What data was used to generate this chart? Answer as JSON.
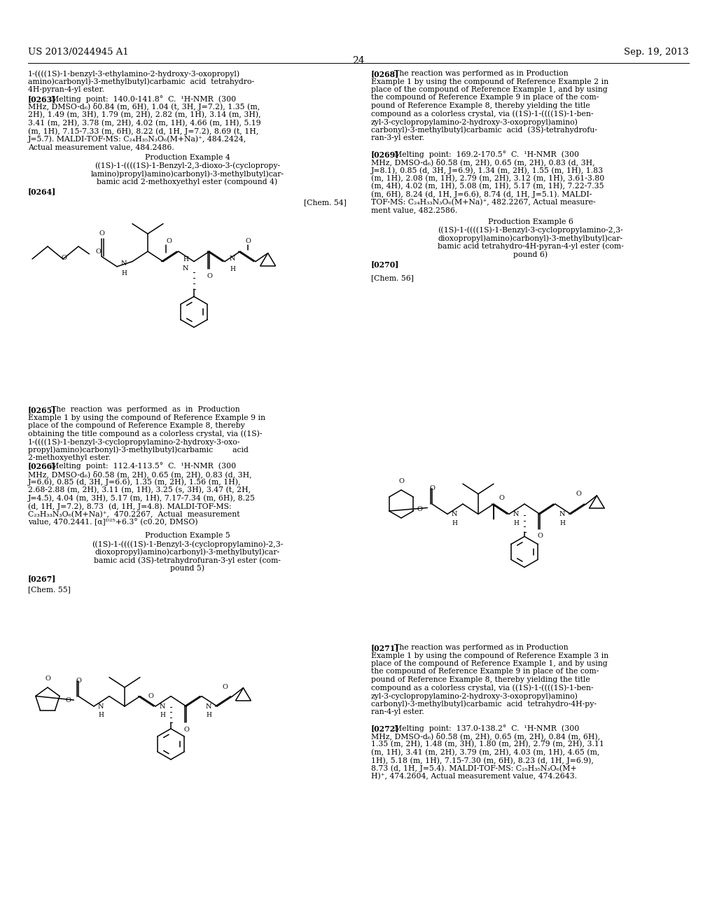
{
  "page_header_left": "US 2013/0244945 A1",
  "page_header_right": "Sep. 19, 2013",
  "page_number": "24",
  "background_color": "#ffffff",
  "text_color": "#000000",
  "figsize": [
    10.24,
    13.2
  ],
  "dpi": 100
}
